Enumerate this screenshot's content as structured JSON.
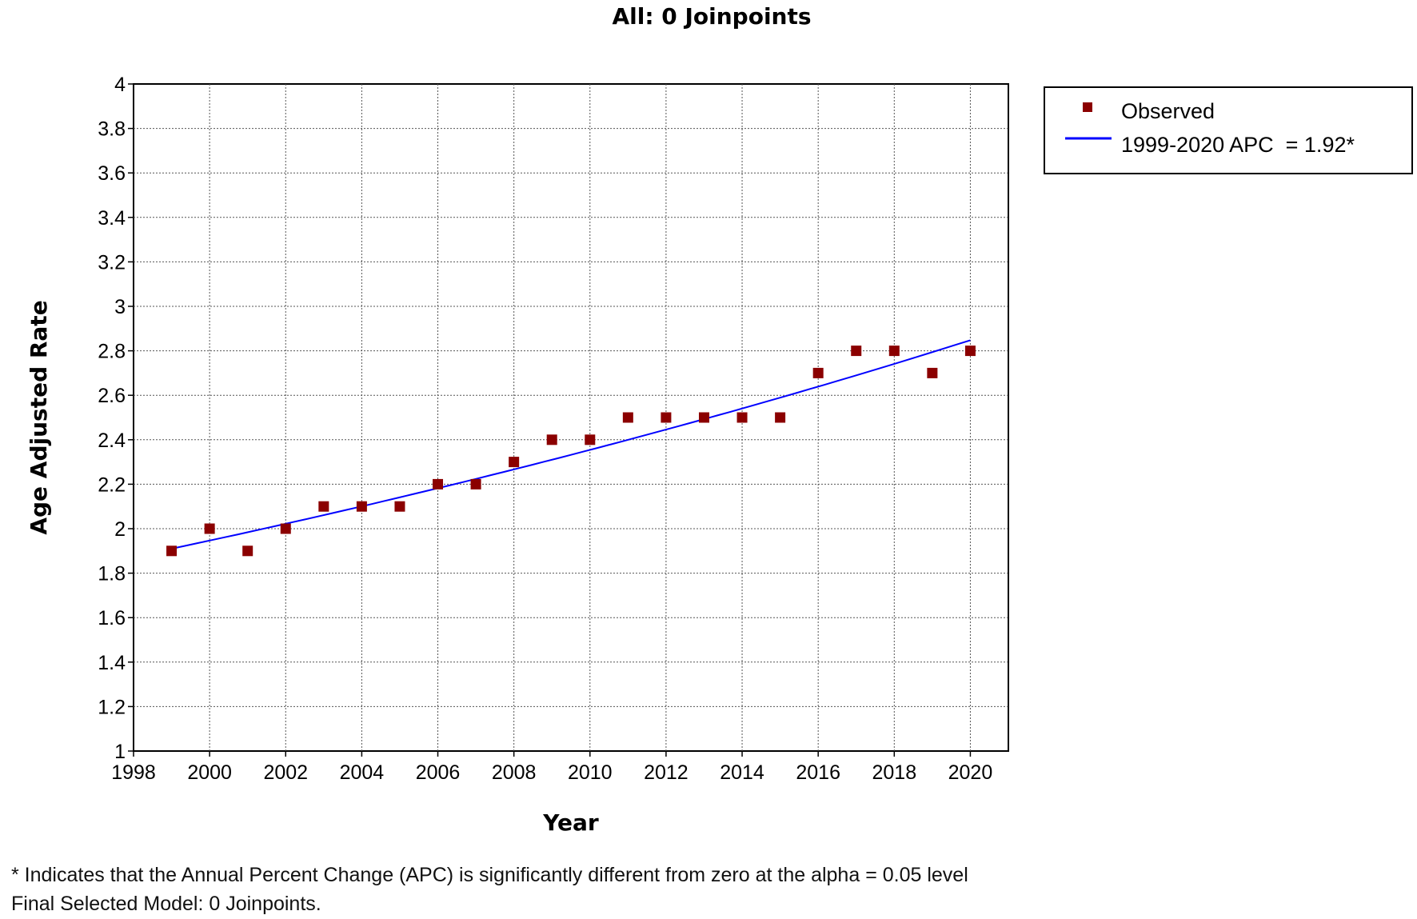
{
  "chart_data": {
    "type": "scatter",
    "title": "All: 0 Joinpoints",
    "xlabel": "Year",
    "ylabel": "Age Adjusted Rate",
    "xlim": [
      1998,
      2021
    ],
    "ylim": [
      1,
      4
    ],
    "xticks": [
      1998,
      2000,
      2002,
      2004,
      2006,
      2008,
      2010,
      2012,
      2014,
      2016,
      2018,
      2020
    ],
    "yticks": [
      1,
      1.2,
      1.4,
      1.6,
      1.8,
      2,
      2.2,
      2.4,
      2.6,
      2.8,
      3,
      3.2,
      3.4,
      3.6,
      3.8,
      4
    ],
    "grid": true,
    "legend_position": "top-right-outside",
    "series": [
      {
        "name": "Observed",
        "kind": "points",
        "color": "#8b0000",
        "x": [
          1999,
          2000,
          2001,
          2002,
          2003,
          2004,
          2005,
          2006,
          2007,
          2008,
          2009,
          2010,
          2011,
          2012,
          2013,
          2014,
          2015,
          2016,
          2017,
          2018,
          2019,
          2020
        ],
        "y": [
          1.9,
          2.0,
          1.9,
          2.0,
          2.1,
          2.1,
          2.1,
          2.2,
          2.2,
          2.3,
          2.4,
          2.4,
          2.5,
          2.5,
          2.5,
          2.5,
          2.5,
          2.7,
          2.8,
          2.8,
          2.7,
          2.8
        ]
      },
      {
        "name": "1999-2020 APC  = 1.92*",
        "kind": "line",
        "color": "#0000ff",
        "x": [
          1999,
          2020
        ],
        "y_start": 1.91,
        "apc": 1.92
      }
    ]
  },
  "footnotes": {
    "significance": "* Indicates that the Annual Percent Change (APC) is significantly different from zero at the alpha = 0.05 level",
    "model": "Final Selected Model: 0 Joinpoints."
  }
}
